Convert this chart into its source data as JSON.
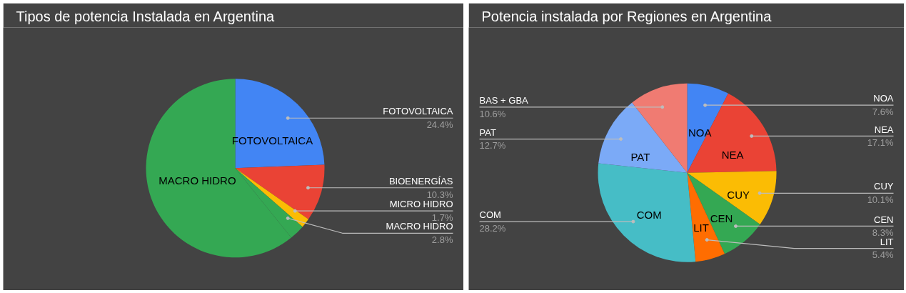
{
  "chart_data": [
    {
      "type": "pie",
      "title": "Tipos de potencia Instalada en Argentina",
      "categories": [
        "FOTOVOLTAICA",
        "BIOENERGÍAS",
        "MICRO HIDRO",
        "MACRO HIDRO",
        "MACRO HIDRO"
      ],
      "values": [
        24.4,
        10.3,
        1.7,
        2.8,
        60.8
      ],
      "colors": [
        "#4285f4",
        "#ea4335",
        "#fbbc04",
        "#34a853",
        "#34a853"
      ],
      "value_labels": [
        "24.4%",
        "10.3%",
        "1.7%",
        "2.8%",
        null
      ],
      "annotations": [
        {
          "text": "FOTOVOLTAICA",
          "x": "FOTOVOLTAICA"
        }
      ]
    },
    {
      "type": "pie",
      "title": "Potencia instalada por Regiones en Argentina",
      "categories": [
        "NOA",
        "NEA",
        "CUY",
        "CEN",
        "LIT",
        "COM",
        "PAT",
        "BAS + GBA"
      ],
      "values": [
        7.6,
        17.1,
        10.1,
        8.3,
        5.4,
        28.2,
        12.7,
        10.6
      ],
      "colors": [
        "#4285f4",
        "#ea4335",
        "#fbbc04",
        "#34a853",
        "#ff6d01",
        "#46bdc6",
        "#7baaf7",
        "#f07b72"
      ],
      "value_labels": [
        "7.6%",
        "17.1%",
        "10.1%",
        "8.3%",
        "5.4%",
        "28.2%",
        "12.7%",
        "10.6%"
      ],
      "annotations": [
        {
          "text": "NOA",
          "x": "NOA"
        },
        {
          "text": "NEA",
          "x": "NEA"
        },
        {
          "text": "CUY",
          "x": "CUY"
        },
        {
          "text": "CEN",
          "x": "CEN"
        },
        {
          "text": "LIT",
          "x": "LIT"
        },
        {
          "text": "COM",
          "x": "COM"
        },
        {
          "text": "PAT",
          "x": "PAT"
        }
      ]
    }
  ]
}
